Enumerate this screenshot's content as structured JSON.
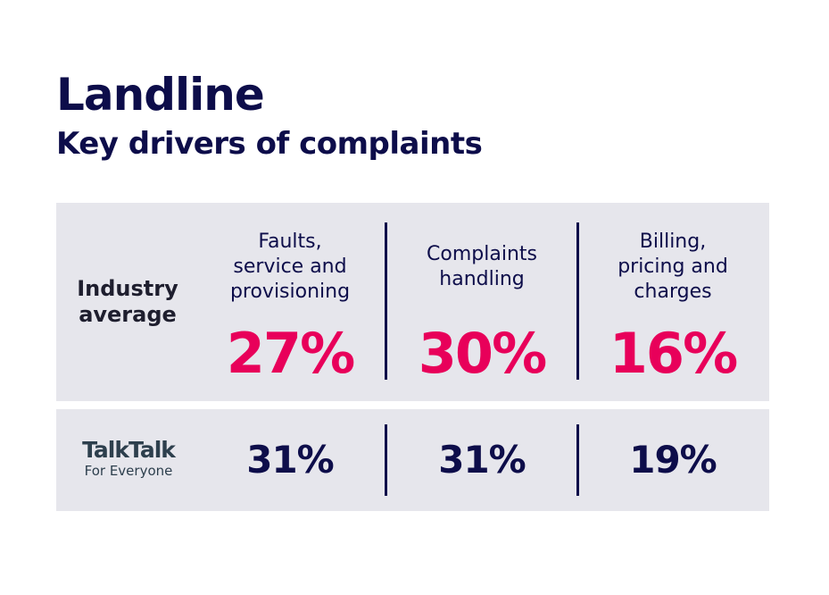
{
  "header": {
    "title": "Landline",
    "subtitle": "Key drivers of complaints"
  },
  "chart_data": {
    "type": "table",
    "title": "Landline",
    "subtitle": "Key drivers of complaints",
    "columns": [
      "Faults, service and provisioning",
      "Complaints handling",
      "Billing, pricing and charges"
    ],
    "rows": [
      {
        "label": "Industry average",
        "values": [
          27,
          30,
          16
        ],
        "display": [
          "27%",
          "30%",
          "16%"
        ]
      },
      {
        "label": "TalkTalk For Everyone",
        "values": [
          31,
          31,
          19
        ],
        "display": [
          "31%",
          "31%",
          "19%"
        ]
      }
    ],
    "unit": "%"
  },
  "industry": {
    "label_line1": "Industry",
    "label_line2": "average"
  },
  "company": {
    "logo_main": "TalkTalk",
    "logo_sub": "For Everyone"
  },
  "columns": [
    {
      "line1": "Faults,",
      "line2": "service and",
      "line3": "provisioning"
    },
    {
      "line1": "Complaints",
      "line2": "handling",
      "line3": ""
    },
    {
      "line1": "Billing,",
      "line2": "pricing and",
      "line3": "charges"
    }
  ],
  "colors": {
    "navy": "#0d0d4a",
    "accent": "#e8005a",
    "panel": "#e6e6ec"
  }
}
